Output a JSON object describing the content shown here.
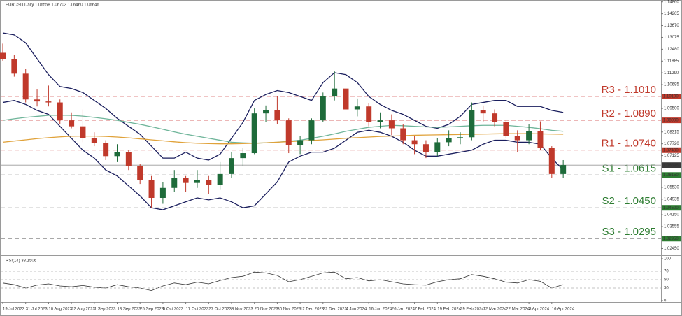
{
  "chart_data": {
    "type": "candlestick",
    "title": "EURUSD,Daily  1.06558 1.06703 1.06460 1.06646",
    "categories": [
      "19 Jul 2023",
      null,
      "31 Jul 2023",
      null,
      "10 Aug 2023",
      null,
      "22 Aug 2023",
      null,
      "1 Sep 2023",
      null,
      "13 Sep 2023",
      null,
      "25 Sep 2023",
      null,
      "5 Oct 2023",
      null,
      "17 Oct 2023",
      null,
      "27 Oct 2023",
      null,
      "8 Nov 2023",
      null,
      "20 Nov 2023",
      null,
      "30 Nov 2023",
      null,
      "12 Dec 2023",
      null,
      "22 Dec 2023",
      null,
      "4 Jan 2024",
      null,
      "16 Jan 2024",
      null,
      "26 Jan 2024",
      null,
      "7 Feb 2024",
      null,
      "19 Feb 2024",
      null,
      "29 Feb 2024",
      null,
      "12 Mar 2024",
      null,
      "22 Mar 2024",
      null,
      "3 Apr 2024",
      null,
      "16 Apr 2024",
      null
    ],
    "open": [
      1.123,
      1.12,
      1.1125,
      1.0995,
      1.0985,
      1.098,
      1.089,
      1.086,
      1.08,
      1.0775,
      1.071,
      1.073,
      1.066,
      1.059,
      1.05,
      1.055,
      1.06,
      1.0575,
      1.059,
      1.0565,
      1.062,
      1.07,
      1.0725,
      1.0925,
      1.094,
      1.089,
      1.0765,
      1.079,
      1.089,
      1.101,
      1.105,
      1.0945,
      1.096,
      1.088,
      1.089,
      1.085,
      1.079,
      1.077,
      1.073,
      1.078,
      1.08,
      1.0805,
      1.094,
      1.0925,
      1.088,
      1.081,
      1.079,
      1.0835,
      1.075,
      1.062
    ],
    "high": [
      1.1276,
      1.122,
      1.115,
      1.1045,
      1.1065,
      1.0995,
      1.093,
      1.0945,
      1.083,
      1.079,
      1.077,
      1.074,
      1.067,
      1.061,
      1.058,
      1.064,
      1.061,
      1.064,
      1.061,
      1.068,
      1.073,
      1.075,
      1.095,
      1.0965,
      1.101,
      1.09,
      1.081,
      1.09,
      1.103,
      1.114,
      1.106,
      1.1,
      1.0975,
      1.093,
      1.092,
      1.087,
      1.081,
      1.079,
      1.08,
      1.084,
      1.083,
      1.098,
      1.0965,
      1.0945,
      1.089,
      1.084,
      1.087,
      1.0885,
      1.076,
      1.069
    ],
    "low": [
      1.119,
      1.111,
      1.098,
      1.096,
      1.096,
      1.087,
      1.085,
      1.078,
      1.076,
      1.069,
      1.068,
      1.064,
      1.057,
      1.045,
      1.047,
      1.053,
      1.053,
      1.055,
      1.052,
      1.054,
      1.06,
      1.066,
      1.072,
      1.088,
      1.087,
      1.0725,
      1.072,
      1.077,
      1.088,
      1.099,
      1.092,
      1.091,
      1.086,
      1.085,
      1.0815,
      1.077,
      1.072,
      1.07,
      1.071,
      1.076,
      1.077,
      1.079,
      1.088,
      1.086,
      1.08,
      1.073,
      1.077,
      1.074,
      1.06,
      1.06
    ],
    "close": [
      1.12,
      1.1125,
      1.0995,
      1.0985,
      1.098,
      1.089,
      1.086,
      1.08,
      1.0775,
      1.071,
      1.073,
      1.066,
      1.059,
      1.05,
      1.055,
      1.06,
      1.0575,
      1.059,
      1.0565,
      1.062,
      1.07,
      1.0725,
      1.0925,
      1.094,
      1.089,
      1.0765,
      1.079,
      1.089,
      1.101,
      1.105,
      1.0945,
      1.096,
      1.088,
      1.089,
      1.085,
      1.079,
      1.077,
      1.073,
      1.078,
      1.08,
      1.0805,
      1.094,
      1.0925,
      1.088,
      1.081,
      1.079,
      1.0835,
      1.075,
      1.062,
      1.0665
    ],
    "up_color": "#1e6b3a",
    "down_color": "#c0392b",
    "overlays": [
      {
        "color": "#1b1f5e",
        "values": [
          1.133,
          1.132,
          1.128,
          1.12,
          1.112,
          1.106,
          1.105,
          1.103,
          1.099,
          1.095,
          1.09,
          1.086,
          1.082,
          1.076,
          1.07,
          1.07,
          1.073,
          1.07,
          1.069,
          1.072,
          1.08,
          1.088,
          1.099,
          1.102,
          1.104,
          1.103,
          1.101,
          1.099,
          1.108,
          1.113,
          1.112,
          1.108,
          1.101,
          1.097,
          1.094,
          1.092,
          1.089,
          1.086,
          1.085,
          1.087,
          1.091,
          1.097,
          1.098,
          1.099,
          1.099,
          1.096,
          1.096,
          1.096,
          1.094,
          1.093
        ]
      },
      {
        "color": "#1b1f5e",
        "values": [
          1.098,
          1.099,
          1.097,
          1.094,
          1.092,
          1.086,
          1.08,
          1.074,
          1.07,
          1.064,
          1.061,
          1.056,
          1.051,
          1.045,
          1.044,
          1.046,
          1.048,
          1.05,
          1.049,
          1.05,
          1.048,
          1.045,
          1.046,
          1.052,
          1.058,
          1.068,
          1.071,
          1.073,
          1.073,
          1.075,
          1.079,
          1.083,
          1.084,
          1.083,
          1.081,
          1.078,
          1.074,
          1.071,
          1.071,
          1.072,
          1.073,
          1.074,
          1.077,
          1.079,
          1.079,
          1.078,
          1.078,
          1.077,
          1.07,
          1.064
        ]
      },
      {
        "color": "#6fb59a",
        "values": [
          1.089,
          1.0898,
          1.0905,
          1.091,
          1.0915,
          1.0916,
          1.0915,
          1.0911,
          1.0905,
          1.0898,
          1.089,
          1.088,
          1.087,
          1.0858,
          1.0845,
          1.0832,
          1.082,
          1.081,
          1.08,
          1.079,
          1.078,
          1.0777,
          1.0775,
          1.0777,
          1.078,
          1.0785,
          1.079,
          1.08,
          1.081,
          1.0822,
          1.0835,
          1.0845,
          1.0855,
          1.086,
          1.0865,
          1.0863,
          1.086,
          1.0857,
          1.0855,
          1.0857,
          1.086,
          1.0863,
          1.0865,
          1.0865,
          1.0865,
          1.086,
          1.0855,
          1.0848,
          1.084,
          1.0835
        ]
      },
      {
        "color": "#e0a23a",
        "values": [
          1.078,
          1.0786,
          1.0792,
          1.0798,
          1.0803,
          1.0807,
          1.081,
          1.0811,
          1.0811,
          1.0809,
          1.0806,
          1.0802,
          1.0797,
          1.0792,
          1.0787,
          1.0782,
          1.0778,
          1.0775,
          1.0773,
          1.0772,
          1.0772,
          1.0773,
          1.0775,
          1.0777,
          1.078,
          1.0783,
          1.0786,
          1.0789,
          1.0792,
          1.0796,
          1.08,
          1.0803,
          1.0806,
          1.0809,
          1.0811,
          1.0813,
          1.0815,
          1.0816,
          1.0817,
          1.0818,
          1.0819,
          1.082,
          1.0821,
          1.0822,
          1.0823,
          1.0823,
          1.0823,
          1.0822,
          1.0821,
          1.082
        ]
      }
    ],
    "ylim": [
      1.0215,
      1.1485
    ],
    "yticks": [
      {
        "value": 1.1486,
        "label": "1.14860"
      },
      {
        "value": 1.14265,
        "label": "1.14265"
      },
      {
        "value": 1.1367,
        "label": "1.13670"
      },
      {
        "value": 1.13075,
        "label": "1.13075"
      },
      {
        "value": 1.1248,
        "label": "1.12480"
      },
      {
        "value": 1.11885,
        "label": "1.11885"
      },
      {
        "value": 1.1129,
        "label": "1.11290"
      },
      {
        "value": 1.10695,
        "label": "1.10695"
      },
      {
        "value": 1.095,
        "label": "1.09500"
      },
      {
        "value": 1.08315,
        "label": "1.08315"
      },
      {
        "value": 1.0772,
        "label": "1.07720"
      },
      {
        "value": 1.07125,
        "label": "1.07125"
      },
      {
        "value": 1.0553,
        "label": "1.05530"
      },
      {
        "value": 1.04935,
        "label": "1.04935"
      },
      {
        "value": 1.0415,
        "label": "1.04150"
      },
      {
        "value": 1.03555,
        "label": "1.03555"
      },
      {
        "value": 1.0245,
        "label": "1.02450"
      }
    ],
    "levels": [
      {
        "label": "R3 - 1.1010",
        "value": 1.101,
        "axis_label": "1.10100",
        "color": "#c0392b",
        "line_color": "#e08a8a"
      },
      {
        "label": "R2 - 1.0890",
        "value": 1.089,
        "axis_label": "1.08900",
        "color": "#c0392b",
        "line_color": "#e08a8a"
      },
      {
        "label": "R1 - 1.0740",
        "value": 1.074,
        "axis_label": "1.07400",
        "color": "#c0392b",
        "line_color": "#e08a8a"
      },
      {
        "label": "S1 - 1.0615",
        "value": 1.0615,
        "axis_label": "1.06150",
        "color": "#2e7d32",
        "line_color": "#8c8c8c"
      },
      {
        "label": "S2 - 1.0450",
        "value": 1.045,
        "axis_label": "1.04500",
        "color": "#2e7d32",
        "line_color": "#8c8c8c"
      },
      {
        "label": "S3 - 1.0295",
        "value": 1.0295,
        "axis_label": "1.02950",
        "color": "#2e7d32",
        "line_color": "#8c8c8c"
      }
    ],
    "current_price": 1.06646,
    "rsi": {
      "label": "RSI(14) 38.1506",
      "color": "#333333",
      "ylim": [
        0,
        100
      ],
      "yticks": [
        0,
        30,
        50,
        70,
        100
      ],
      "values": [
        42,
        38,
        30,
        37,
        40,
        35,
        33,
        36,
        32,
        30,
        38,
        33,
        30,
        24,
        35,
        42,
        38,
        44,
        40,
        48,
        55,
        58,
        68,
        66,
        60,
        45,
        50,
        58,
        66,
        68,
        52,
        55,
        47,
        50,
        45,
        40,
        38,
        37,
        45,
        50,
        52,
        62,
        58,
        52,
        44,
        42,
        50,
        46,
        30,
        38.1506
      ]
    }
  }
}
